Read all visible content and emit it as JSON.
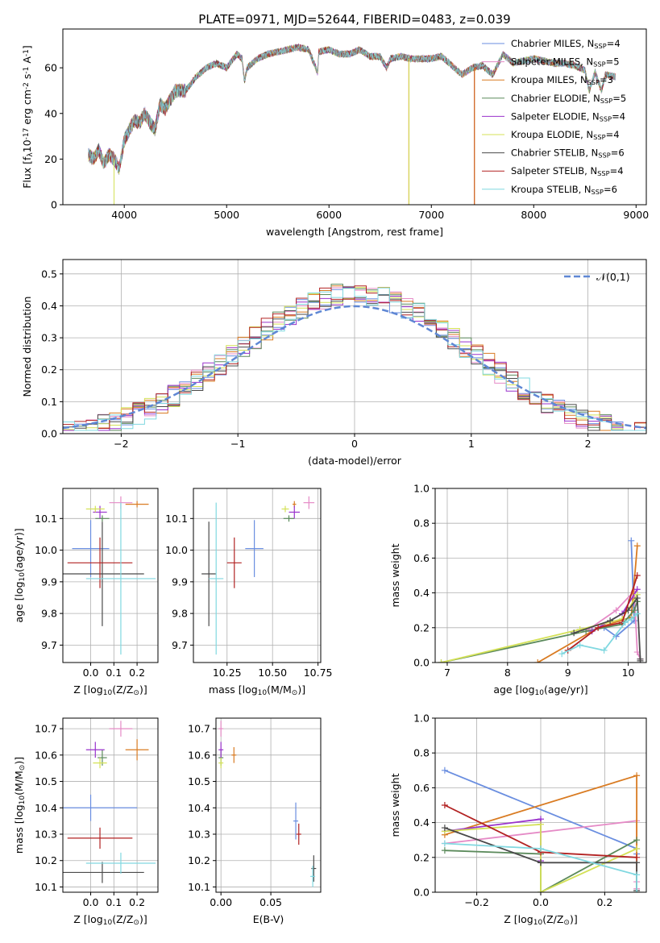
{
  "chart_data": [
    {
      "id": "spectrum",
      "type": "line",
      "title": "PLATE=0971, MJD=52644, FIBERID=0483, z=0.039",
      "xlabel": "wavelength [Angstrom, rest frame]",
      "ylabel": "Flux [f$_\\lambda$10$^{-17}$ erg cm$^{-2}$ s$^{-1}$ A$^{-1}$]",
      "xlim": [
        3400,
        9100
      ],
      "ylim": [
        0,
        77
      ],
      "xticks": [
        4000,
        5000,
        6000,
        7000,
        8000,
        9000
      ],
      "yticks": [
        0,
        20,
        40,
        60
      ],
      "grid": false,
      "legend": "right",
      "envelope": {
        "x": [
          3650,
          3700,
          3750,
          3800,
          3850,
          3900,
          3950,
          4000,
          4050,
          4100,
          4150,
          4200,
          4250,
          4300,
          4350,
          4400,
          4500,
          4600,
          4700,
          4800,
          4900,
          5000,
          5100,
          5150,
          5175,
          5200,
          5300,
          5400,
          5500,
          5600,
          5700,
          5800,
          5890,
          5900,
          6000,
          6100,
          6200,
          6300,
          6400,
          6500,
          6563,
          6600,
          6700,
          6800,
          6900,
          7000,
          7100,
          7200,
          7300,
          7400,
          7500,
          7600,
          7700,
          7800,
          7900,
          8000,
          8100,
          8200,
          8300,
          8400,
          8500,
          8542,
          8600,
          8662,
          8700,
          8800
        ],
        "y": [
          22,
          20,
          24,
          18,
          22,
          20,
          16,
          28,
          33,
          37,
          36,
          40,
          36,
          33,
          44,
          42,
          50,
          50,
          56,
          60,
          62,
          60,
          66,
          64,
          54,
          60,
          64,
          66,
          67,
          68,
          69,
          68,
          58,
          67,
          68,
          66,
          66,
          68,
          65,
          65,
          60,
          64,
          65,
          64,
          64,
          64,
          65,
          61,
          57,
          60,
          61,
          57,
          66,
          62,
          63,
          64,
          63,
          62,
          62,
          61,
          59,
          50,
          58,
          50,
          57,
          56
        ]
      },
      "series": [
        {
          "name": "Chabrier MILES, N$_{SSP}$=4",
          "color": "#6a8ee0"
        },
        {
          "name": "Salpeter MILES, N$_{SSP}$=5",
          "color": "#e58ac6"
        },
        {
          "name": "Kroupa MILES, N$_{SSP}$=3",
          "color": "#d97b22"
        },
        {
          "name": "Chabrier ELODIE, N$_{SSP}$=5",
          "color": "#5b8a5b"
        },
        {
          "name": "Salpeter ELODIE, N$_{SSP}$=4",
          "color": "#9932cc"
        },
        {
          "name": "Kroupa ELODIE, N$_{SSP}$=4",
          "color": "#d4e157"
        },
        {
          "name": "Chabrier STELIB, N$_{SSP}$=6",
          "color": "#4a4a4a"
        },
        {
          "name": "Salpeter STELIB, N$_{SSP}$=4",
          "color": "#b22222"
        },
        {
          "name": "Kroupa STELIB, N$_{SSP}$=6",
          "color": "#80d8e0"
        }
      ],
      "drops": [
        {
          "series": 5,
          "x": 3900,
          "from": 20
        },
        {
          "series": 2,
          "x": 6780,
          "from": 64
        },
        {
          "series": 5,
          "x": 6782,
          "from": 64
        },
        {
          "series": 7,
          "x": 7420,
          "from": 60
        },
        {
          "series": 2,
          "x": 7422,
          "from": 60
        }
      ]
    },
    {
      "id": "residuals",
      "type": "line",
      "xlabel": "(data-model)/error",
      "ylabel": "Normed distribution",
      "xlim": [
        -2.5,
        2.5
      ],
      "ylim": [
        0,
        0.545
      ],
      "xticks": [
        -2,
        -1,
        0,
        1,
        2
      ],
      "yticks": [
        0.0,
        0.1,
        0.2,
        0.3,
        0.4,
        0.5
      ],
      "grid": true,
      "legend": "top-right",
      "normal_label": "$\\mathcal{N}(0,1)$",
      "normal_color": "#5f87d4",
      "bin_width": 0.1
    },
    {
      "id": "age_vs_Z",
      "type": "scatter",
      "xlabel": "Z [log$_{10}$(Z/Z$_\\odot$)]",
      "ylabel": "age  [log$_{10}$(age/yr)]",
      "xlim": [
        -0.12,
        0.29
      ],
      "ylim": [
        9.645,
        10.195
      ],
      "xticks": [
        0.0,
        0.1,
        0.2
      ],
      "yticks": [
        9.7,
        9.8,
        9.9,
        10.0,
        10.1
      ],
      "grid": true,
      "points": [
        {
          "x": 0.0,
          "xerr": 0.08,
          "y": 10.005,
          "yerr": 0.09,
          "c": 0
        },
        {
          "x": 0.13,
          "xerr": 0.05,
          "y": 10.15,
          "yerr": 0.02,
          "c": 1
        },
        {
          "x": 0.2,
          "xerr": 0.05,
          "y": 10.145,
          "yerr": 0.01,
          "c": 2
        },
        {
          "x": 0.05,
          "xerr": 0.03,
          "y": 10.1,
          "yerr": 0.01,
          "c": 3
        },
        {
          "x": 0.04,
          "xerr": 0.03,
          "y": 10.12,
          "yerr": 0.02,
          "c": 4
        },
        {
          "x": 0.02,
          "xerr": 0.04,
          "y": 10.13,
          "yerr": 0.01,
          "c": 5
        },
        {
          "x": 0.05,
          "xerr": 0.18,
          "y": 9.925,
          "yerr": 0.165,
          "c": 6
        },
        {
          "x": 0.04,
          "xerr": 0.14,
          "y": 9.96,
          "yerr": 0.08,
          "c": 7
        },
        {
          "x": 0.13,
          "xerr": 0.15,
          "y": 9.91,
          "yerr": 0.24,
          "c": 8
        }
      ]
    },
    {
      "id": "age_vs_mass",
      "type": "scatter",
      "xlabel": "mass [log$_{10}$(M/M$_\\odot$)]",
      "ylabel": "",
      "xlim": [
        10.065,
        10.765
      ],
      "ylim": [
        9.645,
        10.195
      ],
      "xticks": [
        10.25,
        10.5,
        10.75
      ],
      "xtick_labels": [
        "10.25",
        "10.50",
        "10.75"
      ],
      "yticks": [
        9.7,
        9.8,
        9.9,
        10.0,
        10.1
      ],
      "grid": true,
      "points": [
        {
          "x": 10.4,
          "xerr": 0.05,
          "y": 10.005,
          "yerr": 0.09,
          "c": 0
        },
        {
          "x": 10.7,
          "xerr": 0.03,
          "y": 10.15,
          "yerr": 0.02,
          "c": 1
        },
        {
          "x": 10.62,
          "xerr": 0.01,
          "y": 10.145,
          "yerr": 0.01,
          "c": 2
        },
        {
          "x": 10.59,
          "xerr": 0.03,
          "y": 10.1,
          "yerr": 0.01,
          "c": 3
        },
        {
          "x": 10.62,
          "xerr": 0.03,
          "y": 10.12,
          "yerr": 0.02,
          "c": 4
        },
        {
          "x": 10.57,
          "xerr": 0.02,
          "y": 10.13,
          "yerr": 0.01,
          "c": 5
        },
        {
          "x": 10.15,
          "xerr": 0.04,
          "y": 9.925,
          "yerr": 0.165,
          "c": 6
        },
        {
          "x": 10.29,
          "xerr": 0.04,
          "y": 9.96,
          "yerr": 0.08,
          "c": 7
        },
        {
          "x": 10.19,
          "xerr": 0.04,
          "y": 9.91,
          "yerr": 0.24,
          "c": 8
        }
      ]
    },
    {
      "id": "weight_vs_age",
      "type": "line",
      "xlabel": "age  [log$_{10}$(age/yr)]",
      "ylabel": "mass weight",
      "xlim": [
        6.8,
        10.3
      ],
      "ylim": [
        0,
        1.0
      ],
      "xticks": [
        7,
        8,
        9,
        10
      ],
      "yticks": [
        0.0,
        0.2,
        0.4,
        0.6,
        0.8,
        1.0
      ],
      "grid": true,
      "series": [
        {
          "c": 0,
          "x": [
            9.6,
            9.8,
            10.1,
            10.05
          ],
          "y": [
            0.2,
            0.15,
            0.24,
            0.7
          ]
        },
        {
          "c": 1,
          "x": [
            9.3,
            9.8,
            10.1,
            10.15,
            10.2
          ],
          "y": [
            0.18,
            0.3,
            0.41,
            0.06,
            0.02
          ]
        },
        {
          "c": 2,
          "x": [
            8.5,
            9.5,
            10.05,
            10.15
          ],
          "y": [
            0.0,
            0.2,
            0.26,
            0.67
          ]
        },
        {
          "c": 3,
          "x": [
            6.9,
            9.3,
            9.9,
            10.1,
            10.15
          ],
          "y": [
            0.0,
            0.18,
            0.22,
            0.3,
            0.35
          ]
        },
        {
          "c": 4,
          "x": [
            9.4,
            9.9,
            10.15
          ],
          "y": [
            0.18,
            0.28,
            0.42
          ]
        },
        {
          "c": 5,
          "x": [
            6.9,
            9.2,
            9.9,
            10.15
          ],
          "y": [
            0.0,
            0.19,
            0.25,
            0.39
          ]
        },
        {
          "c": 6,
          "x": [
            9.1,
            9.7,
            10.0,
            10.15,
            10.2,
            10.2
          ],
          "y": [
            0.17,
            0.24,
            0.3,
            0.37,
            0.02,
            0.01
          ]
        },
        {
          "c": 7,
          "x": [
            9.0,
            9.5,
            9.9,
            10.15
          ],
          "y": [
            0.07,
            0.2,
            0.23,
            0.5
          ]
        },
        {
          "c": 8,
          "x": [
            8.9,
            9.2,
            9.6,
            9.95,
            10.05,
            10.15
          ],
          "y": [
            0.05,
            0.1,
            0.07,
            0.23,
            0.25,
            0.28
          ]
        }
      ]
    },
    {
      "id": "mass_vs_Z",
      "type": "scatter",
      "xlabel": "Z [log$_{10}$(Z/Z$_\\odot$)]",
      "ylabel": "mass [log$_{10}$(M/M$_\\odot$)]",
      "xlim": [
        -0.12,
        0.29
      ],
      "ylim": [
        10.08,
        10.74
      ],
      "xticks": [
        0.0,
        0.1,
        0.2
      ],
      "yticks": [
        10.1,
        10.2,
        10.3,
        10.4,
        10.5,
        10.6,
        10.7
      ],
      "grid": true,
      "points": [
        {
          "x": 0.0,
          "xerr": 0.2,
          "y": 10.4,
          "yerr": 0.05,
          "c": 0
        },
        {
          "x": 0.13,
          "xerr": 0.05,
          "y": 10.7,
          "yerr": 0.03,
          "c": 1
        },
        {
          "x": 0.2,
          "xerr": 0.05,
          "y": 10.62,
          "yerr": 0.04,
          "c": 2
        },
        {
          "x": 0.05,
          "xerr": 0.02,
          "y": 10.59,
          "yerr": 0.03,
          "c": 3
        },
        {
          "x": 0.02,
          "xerr": 0.04,
          "y": 10.62,
          "yerr": 0.03,
          "c": 4
        },
        {
          "x": 0.04,
          "xerr": 0.03,
          "y": 10.57,
          "yerr": 0.02,
          "c": 5
        },
        {
          "x": 0.05,
          "xerr": 0.18,
          "y": 10.155,
          "yerr": 0.04,
          "c": 6
        },
        {
          "x": 0.04,
          "xerr": 0.14,
          "y": 10.285,
          "yerr": 0.04,
          "c": 7
        },
        {
          "x": 0.13,
          "xerr": 0.15,
          "y": 10.19,
          "yerr": 0.04,
          "c": 8
        }
      ]
    },
    {
      "id": "mass_vs_ebv",
      "type": "scatter",
      "xlabel": "E(B-V)",
      "ylabel": "",
      "xlim": [
        -0.005,
        0.1
      ],
      "ylim": [
        10.08,
        10.74
      ],
      "xticks": [
        0.0,
        0.05
      ],
      "xtick_labels": [
        "0.00",
        "0.05"
      ],
      "yticks": [
        10.1,
        10.2,
        10.3,
        10.4,
        10.5,
        10.6,
        10.7
      ],
      "grid": true,
      "points": [
        {
          "x": 0.075,
          "y": 10.35,
          "yerr": 0.07,
          "c": 0
        },
        {
          "x": 0.0,
          "y": 10.7,
          "yerr": 0.03,
          "c": 1
        },
        {
          "x": 0.013,
          "y": 10.6,
          "yerr": 0.03,
          "c": 2
        },
        {
          "x": 0.0,
          "y": 10.59,
          "yerr": 0.03,
          "c": 3
        },
        {
          "x": 0.0,
          "y": 10.62,
          "yerr": 0.03,
          "c": 4
        },
        {
          "x": 0.0,
          "y": 10.57,
          "yerr": 0.02,
          "c": 5
        },
        {
          "x": 0.093,
          "y": 10.17,
          "yerr": 0.05,
          "c": 6
        },
        {
          "x": 0.078,
          "y": 10.3,
          "yerr": 0.04,
          "c": 7
        },
        {
          "x": 0.092,
          "y": 10.14,
          "yerr": 0.04,
          "c": 8
        }
      ]
    },
    {
      "id": "weight_vs_Z",
      "type": "line",
      "xlabel": "Z [log$_{10}$(Z/Z$_\\odot$)]",
      "ylabel": "mass weight",
      "xlim": [
        -0.33,
        0.33
      ],
      "ylim": [
        0,
        1.0
      ],
      "xticks": [
        -0.2,
        0.0,
        0.2
      ],
      "yticks": [
        0.0,
        0.2,
        0.4,
        0.6,
        0.8,
        1.0
      ],
      "grid": true,
      "series": [
        {
          "c": 0,
          "x": [
            -0.3,
            0.3,
            0.3
          ],
          "y": [
            0.7,
            0.25,
            0.22
          ]
        },
        {
          "c": 1,
          "x": [
            -0.3,
            0.3,
            0.3,
            0.3
          ],
          "y": [
            0.28,
            0.41,
            0.06,
            0.02
          ]
        },
        {
          "c": 2,
          "x": [
            -0.3,
            0.3,
            0.3
          ],
          "y": [
            0.33,
            0.67,
            0.0
          ]
        },
        {
          "c": 3,
          "x": [
            -0.3,
            0.0,
            0.0,
            0.3
          ],
          "y": [
            0.24,
            0.22,
            0.0,
            0.3
          ]
        },
        {
          "c": 4,
          "x": [
            -0.3,
            0.0,
            0.0
          ],
          "y": [
            0.35,
            0.42,
            0.18
          ]
        },
        {
          "c": 5,
          "x": [
            -0.3,
            0.0,
            0.0,
            0.3
          ],
          "y": [
            0.35,
            0.39,
            0.0,
            0.25
          ]
        },
        {
          "c": 6,
          "x": [
            -0.3,
            0.0,
            0.0,
            0.3,
            0.3
          ],
          "y": [
            0.37,
            0.17,
            0.17,
            0.17,
            0.01
          ]
        },
        {
          "c": 7,
          "x": [
            -0.3,
            0.0,
            0.3
          ],
          "y": [
            0.5,
            0.23,
            0.2
          ]
        },
        {
          "c": 8,
          "x": [
            -0.3,
            0.0,
            0.3,
            0.3
          ],
          "y": [
            0.28,
            0.25,
            0.1,
            0.0
          ]
        }
      ]
    }
  ]
}
